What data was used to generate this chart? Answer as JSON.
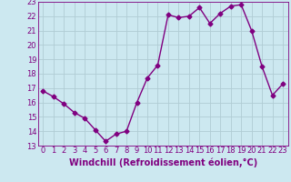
{
  "x": [
    0,
    1,
    2,
    3,
    4,
    5,
    6,
    7,
    8,
    9,
    10,
    11,
    12,
    13,
    14,
    15,
    16,
    17,
    18,
    19,
    20,
    21,
    22,
    23
  ],
  "y": [
    16.8,
    16.4,
    15.9,
    15.3,
    14.9,
    14.1,
    13.3,
    13.8,
    14.0,
    16.0,
    17.7,
    18.6,
    22.1,
    21.9,
    22.0,
    22.6,
    21.5,
    22.2,
    22.7,
    22.8,
    21.0,
    18.5,
    16.5,
    17.3
  ],
  "line_color": "#800080",
  "marker": "D",
  "marker_size": 2.5,
  "line_width": 1.0,
  "bg_color": "#cce8f0",
  "grid_color": "#b0ccd4",
  "xlabel": "Windchill (Refroidissement éolien,°C)",
  "xlabel_fontsize": 7,
  "tick_color": "#800080",
  "tick_fontsize": 6,
  "ylim": [
    13,
    23
  ],
  "xlim": [
    -0.5,
    23.5
  ],
  "yticks": [
    13,
    14,
    15,
    16,
    17,
    18,
    19,
    20,
    21,
    22,
    23
  ],
  "xticks": [
    0,
    1,
    2,
    3,
    4,
    5,
    6,
    7,
    8,
    9,
    10,
    11,
    12,
    13,
    14,
    15,
    16,
    17,
    18,
    19,
    20,
    21,
    22,
    23
  ]
}
